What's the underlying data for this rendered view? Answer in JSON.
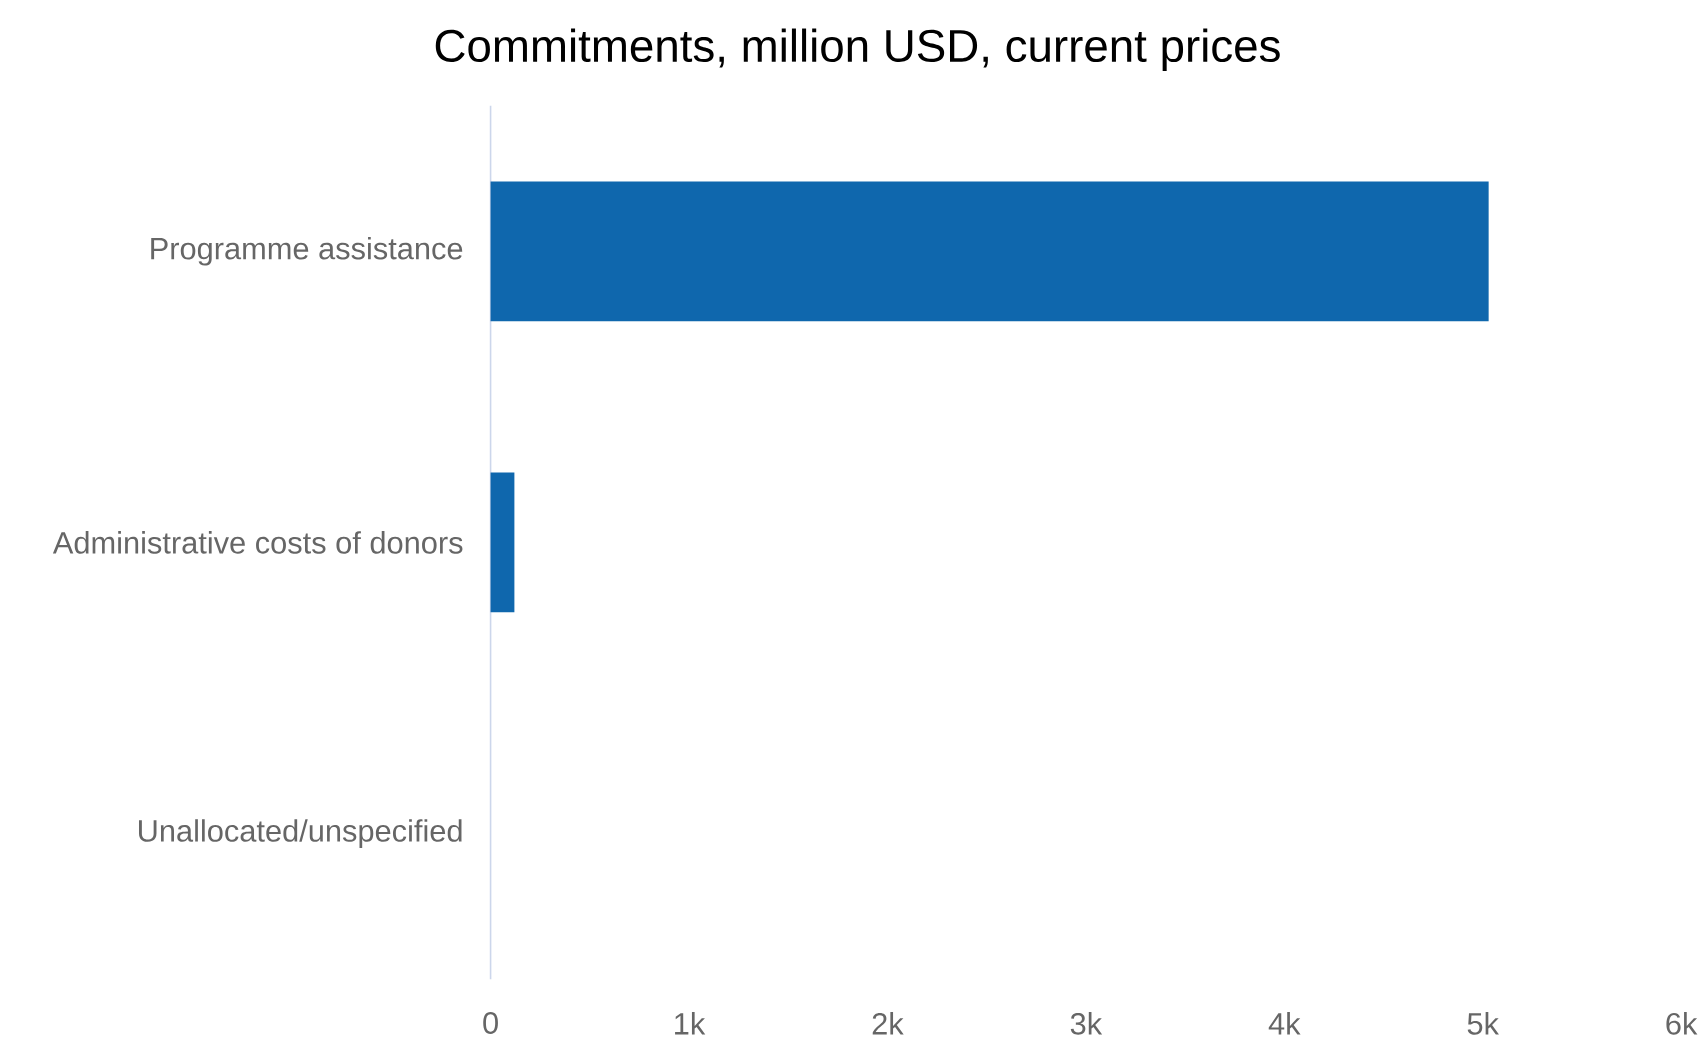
{
  "chart_data": {
    "type": "bar",
    "orientation": "horizontal",
    "title": "Commitments, million USD, current prices",
    "categories": [
      "Programme assistance",
      "Administrative costs of donors",
      "Unallocated/unspecified"
    ],
    "values": [
      5030,
      120,
      0
    ],
    "color": "#0f67ad",
    "xlim": [
      0,
      6000
    ],
    "xticks": [
      0,
      {
        "value": 1000,
        "label": "1k"
      },
      {
        "value": 2000,
        "label": "2k"
      },
      {
        "value": 3000,
        "label": "3k"
      },
      {
        "value": 4000,
        "label": "4k"
      },
      {
        "value": 5000,
        "label": "5k"
      },
      {
        "value": 6000,
        "label": "6k"
      }
    ],
    "grid": false
  }
}
